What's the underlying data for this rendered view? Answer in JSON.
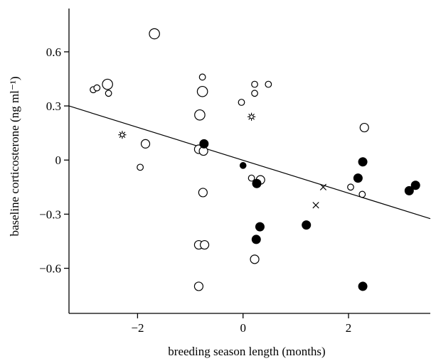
{
  "chart_data": {
    "type": "scatter",
    "title": "",
    "xlabel": "breeding season length (months)",
    "ylabel": "baseline corticosterone (ng ml⁻¹)",
    "xlim": [
      -3.3,
      3.55
    ],
    "ylim": [
      -0.85,
      0.84
    ],
    "xticks": [
      -2,
      0,
      2
    ],
    "xtick_labels": [
      "−2",
      "0",
      "2"
    ],
    "yticks": [
      -0.6,
      -0.3,
      0,
      0.3,
      0.6
    ],
    "ytick_labels": [
      "−0.6",
      "−0.3",
      "0",
      "0.3",
      "0.6"
    ],
    "grid": false,
    "legend": "none",
    "colors": {
      "marker_edge": "#000000",
      "filled_marker": "#000000",
      "open_marker_fill": "#ffffff",
      "regression_line": "#000000"
    },
    "series": [
      {
        "marker": "open-circle",
        "points": [
          {
            "x": -1.68,
            "y": 0.7,
            "size": "large"
          },
          {
            "x": -2.57,
            "y": 0.42,
            "size": "large"
          },
          {
            "x": -2.84,
            "y": 0.39,
            "size": "small"
          },
          {
            "x": -2.77,
            "y": 0.4,
            "size": "small"
          },
          {
            "x": -2.55,
            "y": 0.37,
            "size": "small"
          },
          {
            "x": -0.77,
            "y": 0.46,
            "size": "small"
          },
          {
            "x": -0.77,
            "y": 0.38,
            "size": "large"
          },
          {
            "x": -0.82,
            "y": 0.25,
            "size": "large"
          },
          {
            "x": 0.22,
            "y": 0.42,
            "size": "small"
          },
          {
            "x": 0.48,
            "y": 0.42,
            "size": "small"
          },
          {
            "x": 0.22,
            "y": 0.37,
            "size": "small"
          },
          {
            "x": -0.03,
            "y": 0.32,
            "size": "small"
          },
          {
            "x": -1.85,
            "y": 0.09,
            "size": "medium"
          },
          {
            "x": -1.95,
            "y": -0.04,
            "size": "small"
          },
          {
            "x": -0.84,
            "y": 0.06,
            "size": "medium"
          },
          {
            "x": -0.75,
            "y": 0.05,
            "size": "medium"
          },
          {
            "x": -0.76,
            "y": -0.18,
            "size": "medium"
          },
          {
            "x": -0.84,
            "y": -0.47,
            "size": "medium"
          },
          {
            "x": -0.73,
            "y": -0.47,
            "size": "medium"
          },
          {
            "x": -0.84,
            "y": -0.7,
            "size": "medium"
          },
          {
            "x": 0.16,
            "y": -0.1,
            "size": "small"
          },
          {
            "x": 0.33,
            "y": -0.11,
            "size": "medium"
          },
          {
            "x": 0.22,
            "y": -0.55,
            "size": "medium"
          },
          {
            "x": 2.3,
            "y": 0.18,
            "size": "medium"
          },
          {
            "x": 2.04,
            "y": -0.15,
            "size": "small"
          },
          {
            "x": 2.26,
            "y": -0.19,
            "size": "small"
          }
        ]
      },
      {
        "marker": "filled-circle",
        "points": [
          {
            "x": -0.74,
            "y": 0.09,
            "size": "medium"
          },
          {
            "x": 0.0,
            "y": -0.03,
            "size": "small"
          },
          {
            "x": 0.26,
            "y": -0.13,
            "size": "medium"
          },
          {
            "x": 0.32,
            "y": -0.37,
            "size": "medium"
          },
          {
            "x": 0.25,
            "y": -0.44,
            "size": "medium"
          },
          {
            "x": 1.2,
            "y": -0.36,
            "size": "medium"
          },
          {
            "x": 2.27,
            "y": -0.01,
            "size": "medium"
          },
          {
            "x": 2.18,
            "y": -0.1,
            "size": "medium"
          },
          {
            "x": 3.27,
            "y": -0.14,
            "size": "medium"
          },
          {
            "x": 3.15,
            "y": -0.17,
            "size": "medium"
          },
          {
            "x": 2.27,
            "y": -0.7,
            "size": "medium"
          }
        ]
      },
      {
        "marker": "star",
        "points": [
          {
            "x": -2.29,
            "y": 0.14
          },
          {
            "x": 0.16,
            "y": 0.24
          }
        ]
      },
      {
        "marker": "cross",
        "points": [
          {
            "x": 1.52,
            "y": -0.15
          },
          {
            "x": 1.38,
            "y": -0.25
          }
        ]
      }
    ],
    "regression_line": {
      "x": [
        -3.3,
        3.55
      ],
      "y": [
        0.3,
        -0.325
      ]
    }
  }
}
